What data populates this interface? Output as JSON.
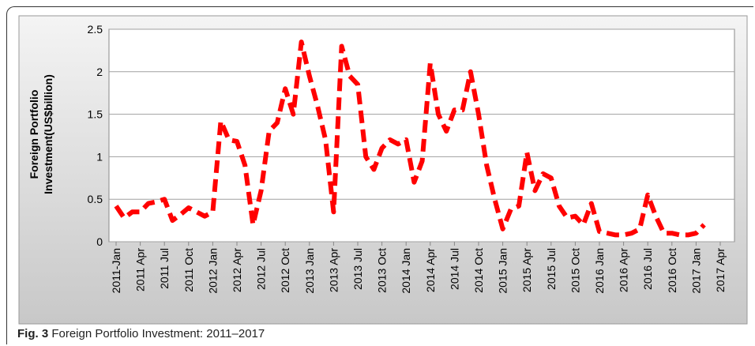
{
  "chart_data": {
    "type": "line",
    "caption_label": "Fig. 3",
    "caption": "Foreign Portfolio Investment: 2011–2017",
    "y_label": "Foreign Portfolio Investment(US$billion)",
    "categories": [
      "2011-Jan",
      null,
      null,
      "2011 Apr",
      null,
      null,
      "2011 Jul",
      null,
      null,
      "2011 Oct",
      null,
      null,
      "2012 Jan",
      null,
      null,
      "2012 Apr",
      null,
      null,
      "2012 Jul",
      null,
      null,
      "2012 Oct",
      null,
      null,
      "2013 Jan",
      null,
      null,
      "2013 Apr",
      null,
      null,
      "2013 Jul",
      null,
      null,
      "2013 Oct",
      null,
      null,
      "2014 Jan",
      null,
      null,
      "2014 Apr",
      null,
      null,
      "2014 Jul",
      null,
      null,
      "2014 Oct",
      null,
      null,
      "2015 Jan",
      null,
      null,
      "2015 Apr",
      null,
      null,
      "2015 Jul",
      null,
      null,
      "2015 Oct",
      null,
      null,
      "2016 Jan",
      null,
      null,
      "2016 Apr",
      null,
      null,
      "2016 Jul",
      null,
      null,
      "2016 Oct",
      null,
      null,
      "2017 Jan",
      null,
      null,
      "2017 Apr"
    ],
    "series": [
      {
        "color": "#ff0000",
        "values": [
          0.42,
          0.28,
          0.35,
          0.35,
          0.45,
          0.47,
          0.5,
          0.25,
          0.32,
          0.4,
          0.35,
          0.3,
          0.35,
          1.42,
          1.2,
          1.18,
          0.9,
          0.2,
          0.6,
          1.3,
          1.4,
          1.8,
          1.5,
          2.35,
          1.95,
          1.6,
          1.2,
          0.35,
          2.3,
          1.95,
          1.85,
          1.0,
          0.85,
          1.1,
          1.2,
          1.15,
          1.2,
          0.7,
          0.95,
          2.1,
          1.5,
          1.3,
          1.55,
          1.55,
          2.0,
          1.5,
          0.9,
          0.5,
          0.15,
          0.38,
          0.42,
          1.05,
          0.6,
          0.8,
          0.75,
          0.42,
          0.28,
          0.3,
          0.2,
          0.45,
          0.12,
          0.1,
          0.08,
          0.08,
          0.1,
          0.15,
          0.55,
          0.3,
          0.1,
          0.1,
          0.08,
          0.08,
          0.1,
          0.2,
          null,
          null
        ]
      }
    ],
    "ylim": [
      0,
      2.5
    ],
    "yticks": [
      0,
      0.5,
      1,
      1.5,
      2,
      2.5
    ],
    "grid": true
  }
}
